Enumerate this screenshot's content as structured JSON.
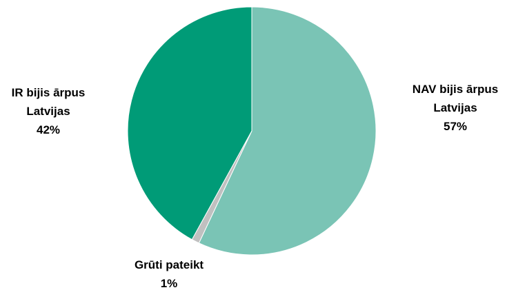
{
  "chart_data": {
    "type": "pie",
    "categories": [
      "NAV bijis ārpus Latvijas",
      "Grūti pateikt",
      "IR bijis ārpus Latvijas"
    ],
    "values": [
      57,
      1,
      42
    ],
    "value_labels": [
      "57%",
      "1%",
      "42%"
    ],
    "colors": [
      "#7ac4b5",
      "#c0c0c0",
      "#009b77"
    ]
  }
}
